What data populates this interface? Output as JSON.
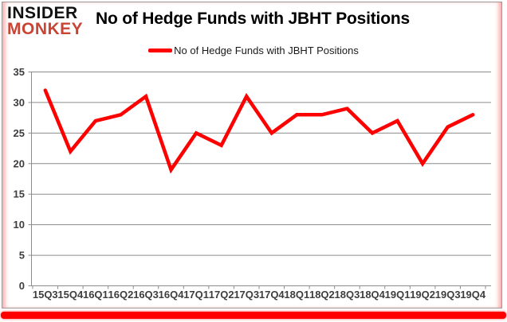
{
  "logo": {
    "line1": "INSIDER",
    "line2": "MONKEY"
  },
  "header": {
    "title": "No of Hedge Funds with JBHT Positions"
  },
  "legend": {
    "label": "No of Hedge Funds with JBHT Positions"
  },
  "colors": {
    "series": "#fe0000",
    "logo_accent": "#c94434",
    "logo_text": "#111111",
    "grid": "#8c8c8c",
    "axis_text": "#3d3d3d",
    "bottom_bar": "#fe0000",
    "border_glow": "#ff5a5a"
  },
  "chart_data": {
    "type": "line",
    "title": "No of Hedge Funds with JBHT Positions",
    "categories": [
      "15Q3",
      "15Q4",
      "16Q1",
      "16Q2",
      "16Q3",
      "16Q4",
      "17Q1",
      "17Q2",
      "17Q3",
      "17Q4",
      "18Q1",
      "18Q2",
      "18Q3",
      "18Q4",
      "19Q1",
      "19Q2",
      "19Q3",
      "19Q4"
    ],
    "series": [
      {
        "name": "No of Hedge Funds with JBHT Positions",
        "color": "#fe0000",
        "values": [
          32,
          22,
          27,
          28,
          31,
          19,
          25,
          23,
          31,
          25,
          28,
          28,
          29,
          25,
          27,
          20,
          26,
          28
        ]
      }
    ],
    "ylim": [
      0,
      35
    ],
    "yticks": [
      0,
      5,
      10,
      15,
      20,
      25,
      30,
      35
    ],
    "grid": true,
    "legend_position": "top-center",
    "xlabel": "",
    "ylabel": ""
  }
}
